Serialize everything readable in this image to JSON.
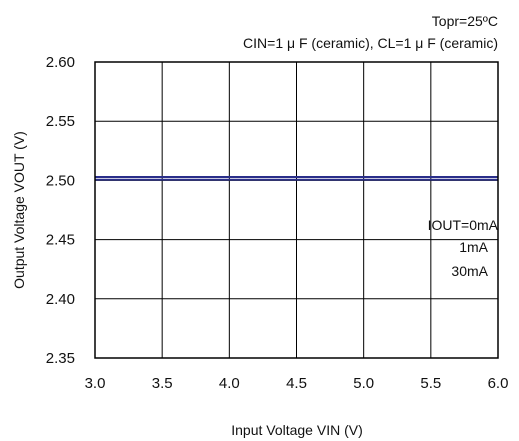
{
  "chart_data": {
    "type": "line",
    "condition_lines": [
      "Topr=25ºC",
      "CIN=1 μ F (ceramic), CL=1 μ F (ceramic)"
    ],
    "xlabel": "Input Voltage VIN (V)",
    "ylabel": "Output Voltage VOUT (V)",
    "xlim": [
      3.0,
      6.0
    ],
    "ylim": [
      2.35,
      2.6
    ],
    "x_ticks": [
      "3.0",
      "3.5",
      "4.0",
      "4.5",
      "5.0",
      "5.5",
      "6.0"
    ],
    "y_ticks": [
      "2.60",
      "2.55",
      "2.50",
      "2.45",
      "2.40",
      "2.35"
    ],
    "grid": true,
    "legend_labels": [
      "IOUT=0mA",
      "1mA",
      "30mA"
    ],
    "x": [
      3.0,
      3.5,
      4.0,
      4.5,
      5.0,
      5.5,
      6.0
    ],
    "series": [
      {
        "name": "IOUT=0mA",
        "values": [
          2.503,
          2.503,
          2.503,
          2.503,
          2.503,
          2.503,
          2.503
        ]
      },
      {
        "name": "1mA",
        "values": [
          2.5025,
          2.5025,
          2.5025,
          2.5025,
          2.5025,
          2.5025,
          2.5025
        ]
      },
      {
        "name": "30mA",
        "values": [
          2.5005,
          2.5005,
          2.5005,
          2.5005,
          2.5005,
          2.5005,
          2.5005
        ]
      }
    ],
    "colors": {
      "lines": "#2b2f8a",
      "grid": "#000000",
      "axes": "#000000"
    }
  }
}
